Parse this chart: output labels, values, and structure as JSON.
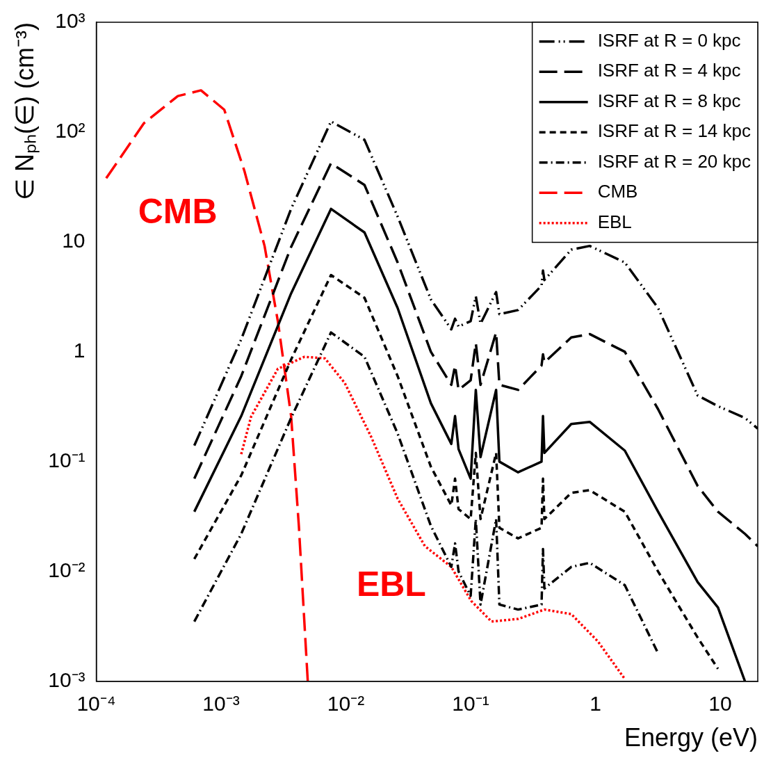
{
  "chart_data": {
    "type": "line",
    "xlabel": "Energy (eV)",
    "ylabel": "∈ Nₚₕ(∈) (cm⁻³)",
    "log": "xy",
    "xlim": [
      0.0001,
      20
    ],
    "ylim": [
      0.001,
      1000
    ],
    "xticks": [
      {
        "value": 0.0001,
        "label": "10⁻⁴"
      },
      {
        "value": 0.001,
        "label": "10⁻³"
      },
      {
        "value": 0.01,
        "label": "10⁻²"
      },
      {
        "value": 0.1,
        "label": "10⁻¹"
      },
      1,
      10
    ],
    "yticks": [
      {
        "value": 0.001,
        "label": "10⁻³"
      },
      {
        "value": 0.01,
        "label": "10⁻²"
      },
      {
        "value": 0.1,
        "label": "10⁻¹"
      },
      1,
      10,
      {
        "value": 100,
        "label": "10²"
      },
      {
        "value": 1000,
        "label": "10³"
      }
    ],
    "x": [
      0.00061,
      0.00145,
      0.00364,
      0.0076,
      0.0141,
      0.026,
      0.048,
      0.07,
      0.075,
      0.08,
      0.1,
      0.11,
      0.12,
      0.16,
      0.17,
      0.24,
      0.37,
      0.38,
      0.39,
      0.64,
      0.9,
      1.72,
      3.18,
      6.6,
      9.6,
      15.8,
      20
    ],
    "series": [
      {
        "name": "ISRF at R = 0 kpc",
        "color": "#000000",
        "line_style": "dashdotdot",
        "values": [
          0.14,
          1.3,
          20,
          125,
          85,
          17,
          3,
          1.6,
          2,
          1.7,
          1.9,
          3.2,
          1.8,
          3.5,
          2.2,
          2.4,
          4,
          5.5,
          4.5,
          8.5,
          9.2,
          6.5,
          2.5,
          0.4,
          0.32,
          0.25,
          0.2
        ]
      },
      {
        "name": "ISRF at R = 4 kpc",
        "color": "#000000",
        "line_style": "longdash",
        "values": [
          0.07,
          0.6,
          9,
          52,
          33,
          6.5,
          1,
          0.5,
          0.75,
          0.45,
          0.55,
          1.2,
          0.5,
          1.5,
          0.5,
          0.45,
          0.75,
          0.95,
          0.8,
          1.35,
          1.45,
          1,
          0.3,
          0.06,
          0.035,
          0.022,
          0.017
        ]
      },
      {
        "name": "ISRF at R = 8 kpc",
        "color": "#000000",
        "line_style": "solid",
        "values": [
          0.035,
          0.26,
          3.4,
          20,
          12.2,
          2.5,
          0.34,
          0.145,
          0.26,
          0.13,
          0.07,
          0.45,
          0.11,
          0.45,
          0.1,
          0.08,
          0.1,
          0.26,
          0.12,
          0.22,
          0.23,
          0.126,
          0.035,
          0.008,
          0.0047,
          0.001,
          null
        ]
      },
      {
        "name": "ISRF at R = 14 kpc",
        "color": "#000000",
        "line_style": "dashed",
        "values": [
          0.013,
          0.075,
          0.85,
          5,
          3.1,
          0.6,
          0.09,
          0.04,
          0.07,
          0.037,
          0.03,
          0.12,
          0.03,
          0.12,
          0.025,
          0.02,
          0.025,
          0.07,
          0.03,
          0.052,
          0.055,
          0.035,
          0.01,
          0.0025,
          0.0013,
          null,
          null
        ]
      },
      {
        "name": "ISRF at R = 20 kpc",
        "color": "#000000",
        "line_style": "dashdot",
        "values": [
          0.0035,
          0.022,
          0.25,
          1.5,
          0.9,
          0.18,
          0.026,
          0.011,
          0.018,
          0.01,
          0.006,
          0.03,
          0.005,
          0.03,
          0.005,
          0.0045,
          0.005,
          0.016,
          0.007,
          0.011,
          0.012,
          0.0075,
          0.0018,
          null,
          null,
          null,
          null
        ]
      },
      {
        "name": "CMB",
        "color": "#ff0000",
        "line_style": "longdash",
        "x": [
          0.00012,
          0.00024,
          0.00045,
          0.00069,
          0.00106,
          0.00154,
          0.00223,
          0.00285,
          0.00364,
          0.0042,
          0.00495
        ],
        "values": [
          38,
          120,
          213,
          240,
          160,
          44,
          9.2,
          1.9,
          0.26,
          0.026,
          0.001
        ]
      },
      {
        "name": "EBL",
        "color": "#ff0000",
        "line_style": "dotted",
        "x": [
          0.00145,
          0.00174,
          0.00285,
          0.00466,
          0.0068,
          0.0098,
          0.016,
          0.026,
          0.043,
          0.07,
          0.101,
          0.147,
          0.24,
          0.39,
          0.64,
          1.05,
          1.72
        ],
        "values": [
          0.117,
          0.257,
          0.7,
          0.9,
          0.87,
          0.52,
          0.167,
          0.046,
          0.017,
          0.011,
          0.0054,
          0.0035,
          0.0037,
          0.0045,
          0.0041,
          0.0023,
          0.00105
        ]
      }
    ],
    "annotations": [
      "CMB",
      "EBL"
    ],
    "legend": "top right",
    "marker": "none",
    "grid": false
  }
}
